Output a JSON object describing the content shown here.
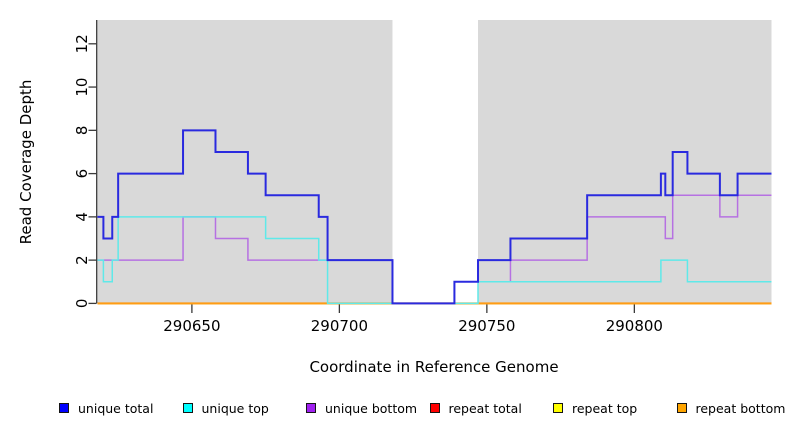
{
  "figure": {
    "y_axis": {
      "label": "Read Coverage Depth",
      "ticks": [
        0,
        2,
        4,
        6,
        8,
        10,
        12
      ]
    },
    "x_axis": {
      "label": "Coordinate in Reference Genome",
      "ticks": [
        290650,
        290700,
        290750,
        290800
      ]
    },
    "panel": {
      "background": "#D9D9D9",
      "axis_color": "#3A3A3A",
      "highlight_band": {
        "from": 290718,
        "to": 290747,
        "fill": "#FFFFFF"
      }
    }
  },
  "chart_data": {
    "type": "line",
    "subtype": "step-coverage",
    "title": "",
    "xlabel": "Coordinate in Reference Genome",
    "ylabel": "Read Coverage Depth",
    "xlim": [
      290618,
      290846.5
    ],
    "ylim": [
      0,
      13.1
    ],
    "grid": false,
    "legend_position": "bottom",
    "x_ticks": [
      290650,
      290700,
      290750,
      290800
    ],
    "y_ticks": [
      0,
      2,
      4,
      6,
      8,
      10,
      12
    ],
    "series": [
      {
        "name": "repeat total",
        "line_color": "#E00000",
        "width": 1.6,
        "steps": [
          [
            290618,
            0
          ],
          [
            290846.5,
            0
          ]
        ]
      },
      {
        "name": "repeat top",
        "line_color": "#FFFF00",
        "width": 1.6,
        "steps": [
          [
            290618,
            0
          ],
          [
            290846.5,
            0
          ]
        ]
      },
      {
        "name": "repeat bottom",
        "line_color": "#FF9C14",
        "width": 2,
        "steps": [
          [
            290618,
            0
          ],
          [
            290846.5,
            0
          ]
        ]
      },
      {
        "name": "unique bottom",
        "line_color": "#B671E2",
        "width": 1.5,
        "steps": [
          [
            290618,
            2
          ],
          [
            290647,
            4
          ],
          [
            290658,
            3
          ],
          [
            290669,
            2
          ],
          [
            290718,
            0
          ],
          [
            290739,
            1
          ],
          [
            290758,
            2
          ],
          [
            290784,
            4
          ],
          [
            290810.5,
            3
          ],
          [
            290813,
            5
          ],
          [
            290829,
            4
          ],
          [
            290835,
            5
          ],
          [
            290846.5,
            5
          ]
        ]
      },
      {
        "name": "unique top",
        "line_color": "#5FE9E9",
        "width": 1.5,
        "steps": [
          [
            290618,
            2
          ],
          [
            290620,
            1
          ],
          [
            290623,
            2
          ],
          [
            290625,
            4
          ],
          [
            290675,
            3
          ],
          [
            290693,
            2
          ],
          [
            290696,
            0
          ],
          [
            290747,
            1
          ],
          [
            290809,
            2
          ],
          [
            290818,
            1
          ],
          [
            290846.5,
            1
          ]
        ]
      },
      {
        "name": "unique total",
        "line_color": "#2A2ADF",
        "width": 2,
        "steps": [
          [
            290618,
            4
          ],
          [
            290620,
            3
          ],
          [
            290623,
            4
          ],
          [
            290625,
            6
          ],
          [
            290647,
            8
          ],
          [
            290658,
            7
          ],
          [
            290669,
            6
          ],
          [
            290675,
            5
          ],
          [
            290693,
            4
          ],
          [
            290696,
            2
          ],
          [
            290718,
            0
          ],
          [
            290739,
            1
          ],
          [
            290747,
            2
          ],
          [
            290758,
            3
          ],
          [
            290784,
            5
          ],
          [
            290809,
            6
          ],
          [
            290810.5,
            5
          ],
          [
            290813,
            7
          ],
          [
            290818,
            6
          ],
          [
            290829,
            5
          ],
          [
            290835,
            6
          ],
          [
            290846.5,
            6
          ]
        ]
      }
    ],
    "legend": [
      {
        "label": "unique total",
        "color": "#0000FF"
      },
      {
        "label": "unique top",
        "color": "#00FFFF"
      },
      {
        "label": "unique bottom",
        "color": "#A020F0"
      },
      {
        "label": "repeat total",
        "color": "#FF0000"
      },
      {
        "label": "repeat top",
        "color": "#FFFF00"
      },
      {
        "label": "repeat bottom",
        "color": "#FFA500"
      }
    ]
  }
}
